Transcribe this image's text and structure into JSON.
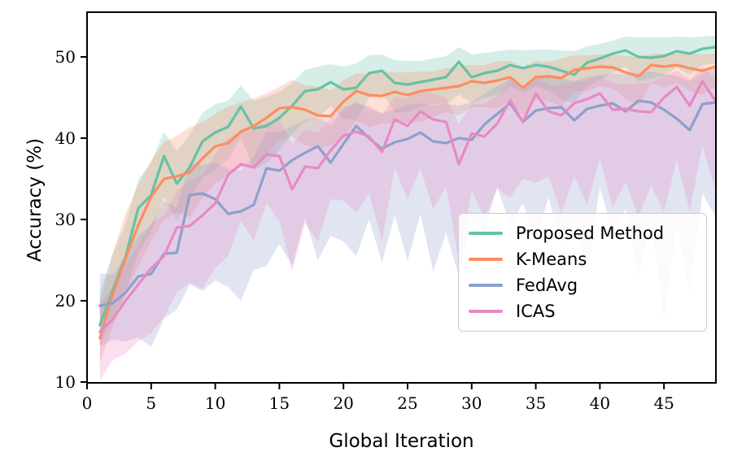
{
  "chart_data": {
    "type": "line",
    "xlabel": "Global Iteration",
    "ylabel": "Accuracy (%)",
    "x_first": 1,
    "x_step": 1,
    "xlim": [
      0,
      49.05
    ],
    "ylim": [
      9.9,
      55.5
    ],
    "xticks": [
      0,
      5,
      10,
      15,
      20,
      25,
      30,
      35,
      40,
      45
    ],
    "yticks": [
      10,
      20,
      30,
      40,
      50
    ],
    "grid": false,
    "legend_position": "lower right",
    "band_alpha": 0.27,
    "series": [
      {
        "name": "Proposed Method",
        "color": "#66c2a5",
        "values": [
          17.0,
          21.3,
          25.4,
          31.4,
          33.0,
          37.8,
          34.4,
          36.4,
          39.6,
          40.7,
          41.4,
          43.9,
          41.2,
          41.5,
          42.5,
          44.0,
          45.8,
          46.0,
          46.9,
          46.0,
          46.2,
          48.0,
          48.3,
          46.8,
          46.6,
          46.9,
          47.2,
          47.5,
          49.4,
          47.5,
          48.0,
          48.3,
          49.0,
          48.6,
          49.0,
          48.8,
          48.3,
          47.8,
          49.3,
          49.8,
          50.4,
          50.8,
          50.0,
          49.9,
          50.1,
          50.7,
          50.4,
          51.0,
          51.2
        ],
        "band_up": [
          4,
          4.5,
          4,
          3.5,
          4,
          3,
          4,
          4,
          3.5,
          3.5,
          3.2,
          2.6,
          3.4,
          3.6,
          3.2,
          2.8,
          2.6,
          2.8,
          2.2,
          2.8,
          3,
          2.2,
          2,
          2.8,
          2.9,
          2.6,
          2.6,
          2.6,
          1.8,
          2.8,
          2.5,
          2.4,
          1.9,
          2.2,
          1.9,
          2.1,
          2.5,
          2.9,
          2,
          1.8,
          1.6,
          1.7,
          2.4,
          2.5,
          2.3,
          1.8,
          2,
          1.5,
          1.4
        ],
        "band_down": [
          2.5,
          3.5,
          4.5,
          5.5,
          4.5,
          5,
          4.5,
          4,
          4.5,
          4.5,
          4,
          3.8,
          5,
          4.6,
          4,
          3.4,
          3.8,
          3.4,
          3,
          3.6,
          4,
          3,
          2.8,
          3.6,
          3.4,
          3,
          3,
          3.4,
          4,
          3.2,
          3,
          3,
          2.6,
          3,
          2.6,
          3,
          3.6,
          3.4,
          3,
          2.6,
          2.4,
          2,
          3,
          2.6,
          2.4,
          2,
          2.6,
          2,
          2
        ]
      },
      {
        "name": "K-Means",
        "color": "#fc8d62",
        "values": [
          15.4,
          20.8,
          25.2,
          29.3,
          32.8,
          35.0,
          35.3,
          35.8,
          37.5,
          39.0,
          39.4,
          40.8,
          41.5,
          42.5,
          43.7,
          43.8,
          43.5,
          42.8,
          42.7,
          44.5,
          45.8,
          45.3,
          45.2,
          45.7,
          45.3,
          45.8,
          46.0,
          46.2,
          46.4,
          47.0,
          46.8,
          47.1,
          47.5,
          46.2,
          47.5,
          47.6,
          47.4,
          48.4,
          48.6,
          48.8,
          48.7,
          48.1,
          47.6,
          49.0,
          48.8,
          49.0,
          48.6,
          48.3,
          48.8
        ],
        "band_up": [
          4.5,
          5,
          5.5,
          5,
          4.5,
          4.5,
          5,
          5.5,
          4.5,
          4,
          4.5,
          3.6,
          3.4,
          3,
          2.6,
          3.4,
          3,
          3.6,
          3.2,
          2.6,
          2.2,
          2.6,
          3,
          2.4,
          2.8,
          2.4,
          2.2,
          2.4,
          2.6,
          2,
          2.2,
          2.4,
          2,
          2.6,
          2,
          1.8,
          2.4,
          1.8,
          1.6,
          1.5,
          1.6,
          2,
          2.4,
          1.4,
          1.6,
          1.4,
          1.8,
          2,
          1.6
        ],
        "band_down": [
          3,
          4,
          4.5,
          5,
          5.5,
          5,
          4.5,
          5.5,
          5,
          4.5,
          4,
          4.4,
          5,
          4.6,
          4,
          3.6,
          4.4,
          4,
          3.6,
          4.4,
          3.6,
          4,
          3.4,
          3.8,
          3.4,
          3.8,
          3.4,
          3,
          3.6,
          3.2,
          3,
          3.4,
          2.8,
          3.4,
          2.8,
          3,
          3.6,
          2.6,
          2.8,
          2.4,
          2.6,
          3.2,
          3.6,
          2.2,
          2.6,
          2.2,
          2.8,
          3,
          2.4
        ]
      },
      {
        "name": "FedAvg",
        "color": "#8da0cb",
        "values": [
          19.4,
          19.7,
          21.0,
          23.0,
          23.3,
          25.8,
          25.9,
          33.0,
          33.2,
          32.5,
          30.7,
          31.0,
          31.8,
          36.3,
          36.0,
          37.3,
          38.2,
          39.0,
          37.0,
          39.3,
          41.5,
          40.0,
          38.7,
          39.5,
          39.9,
          40.7,
          39.6,
          39.4,
          40.0,
          39.8,
          41.7,
          43.0,
          44.3,
          42.0,
          43.4,
          43.7,
          43.8,
          42.2,
          43.6,
          44.0,
          44.3,
          43.3,
          44.6,
          44.4,
          43.5,
          42.4,
          41.0,
          44.2,
          44.4
        ],
        "band_up": [
          4,
          3.5,
          4.5,
          5,
          6,
          6.5,
          5.5,
          4,
          3.5,
          4.5,
          5.5,
          5,
          6,
          4.5,
          4.8,
          4.2,
          4,
          3.6,
          4.6,
          4.2,
          3,
          3.6,
          4.4,
          4,
          4.2,
          3.6,
          4.4,
          4.8,
          4,
          4.6,
          3.8,
          3.4,
          3,
          4.4,
          3.8,
          4.2,
          3.6,
          4.8,
          4,
          3.8,
          3.6,
          4.6,
          3.4,
          3.8,
          4.4,
          5.2,
          6,
          3.8,
          4.2
        ],
        "band_down": [
          5,
          4.5,
          6,
          7.5,
          9,
          8,
          7,
          11,
          12,
          10,
          9,
          11,
          8,
          12,
          9,
          13,
          8,
          14,
          9,
          12,
          16,
          10,
          14,
          9,
          15,
          10,
          16,
          11,
          17,
          10,
          13,
          9,
          15,
          10,
          16,
          11,
          17,
          12,
          20,
          10,
          16,
          12,
          22,
          14,
          26,
          13,
          20,
          11,
          14
        ]
      },
      {
        "name": "ICAS",
        "color": "#e78ac3",
        "values": [
          16.2,
          17.7,
          20.0,
          22.0,
          24.0,
          25.5,
          29.0,
          29.2,
          30.5,
          32.0,
          35.5,
          36.8,
          36.4,
          38.0,
          37.8,
          33.7,
          36.5,
          36.3,
          38.5,
          40.3,
          40.8,
          40.2,
          38.3,
          42.3,
          41.5,
          43.3,
          42.3,
          42.0,
          36.8,
          40.6,
          40.2,
          41.8,
          44.7,
          42.0,
          45.5,
          43.3,
          42.8,
          44.3,
          44.8,
          45.5,
          43.5,
          43.6,
          43.3,
          43.2,
          45.0,
          46.3,
          44.0,
          47.0,
          44.6
        ],
        "band_up": [
          3.5,
          4,
          4.5,
          5,
          5.5,
          5,
          4.5,
          5.5,
          5,
          6,
          4.5,
          4,
          5,
          4,
          4.4,
          5.6,
          4.6,
          4.4,
          4,
          3.6,
          3.4,
          3.8,
          4.6,
          2.8,
          3.4,
          2.6,
          3.2,
          3,
          5,
          3.6,
          4,
          3.4,
          2.6,
          3.8,
          2.4,
          3.2,
          3.8,
          2.6,
          2.4,
          2.2,
          3.2,
          3,
          3.4,
          3.6,
          2.6,
          2,
          3.2,
          1.8,
          2.8
        ],
        "band_down": [
          6,
          5,
          6.5,
          7,
          8,
          7.5,
          8,
          7,
          9,
          8,
          10,
          7,
          9,
          6,
          8,
          10,
          7,
          9,
          6,
          8,
          10,
          7,
          11,
          6,
          9,
          7,
          11,
          8,
          12,
          7,
          10,
          8,
          12,
          7,
          11,
          8,
          12,
          9,
          13,
          8,
          12,
          9,
          13,
          9,
          14,
          9,
          13,
          8,
          11
        ]
      }
    ]
  }
}
